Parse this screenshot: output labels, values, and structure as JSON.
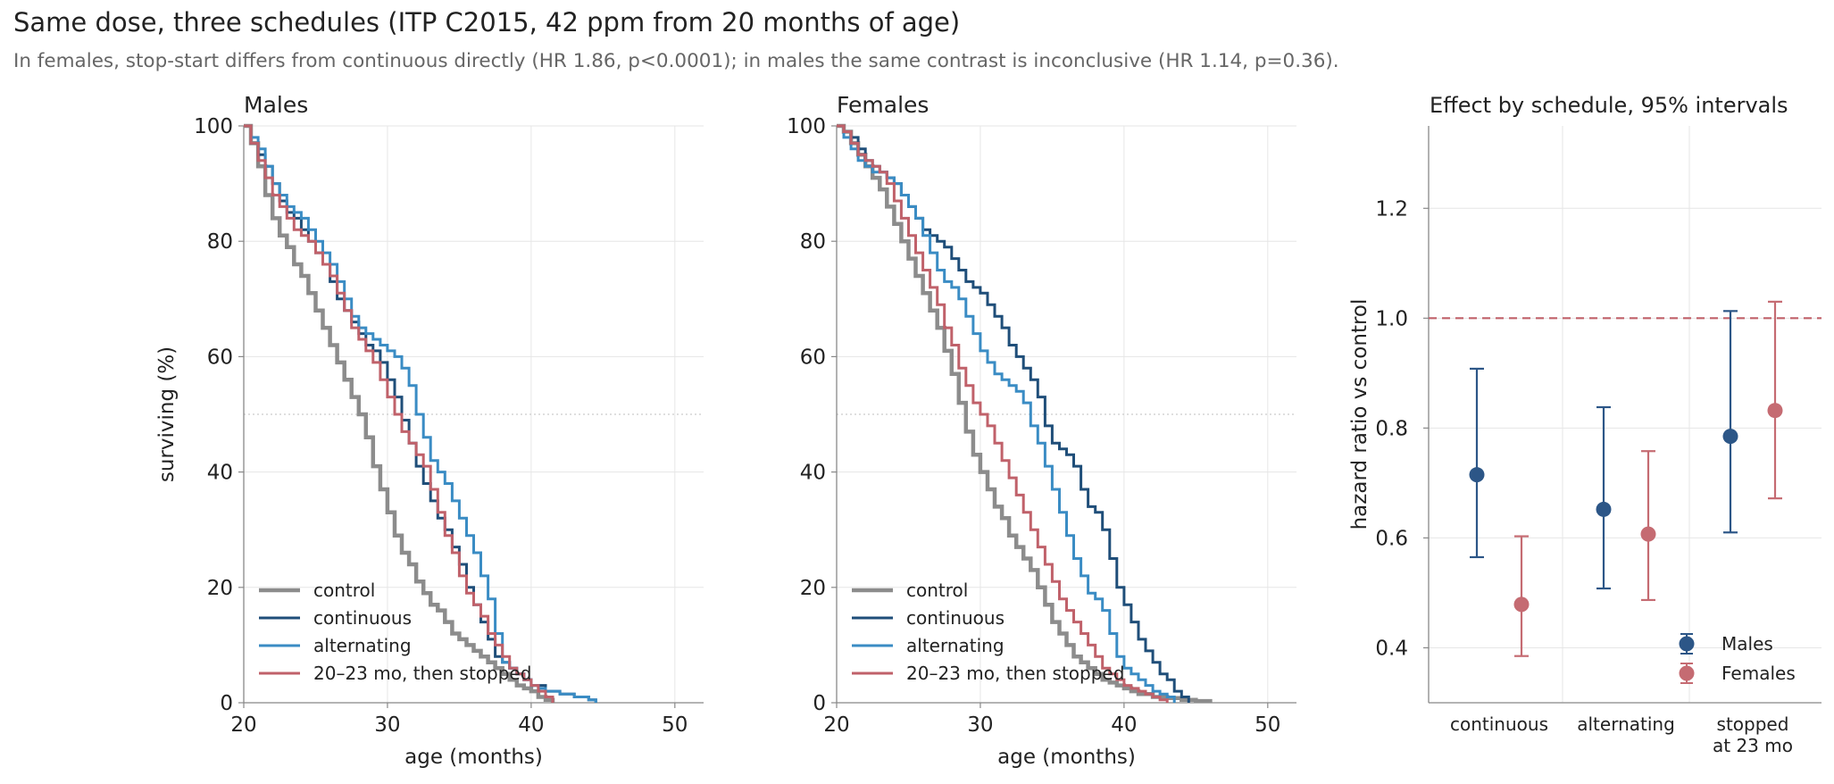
{
  "title": "Same dose, three schedules (ITP C2015, 42 ppm from 20 months of age)",
  "subtitle": "In females, stop-start differs from continuous directly (HR 1.86, p<0.0001); in males the same contrast is inconclusive (HR 1.14, p=0.36).",
  "colors": {
    "control": "#8c8c8c",
    "continuous": "#1f4e79",
    "alternating": "#3a8cc4",
    "stopped": "#c0616a",
    "males": "#2c5687",
    "females": "#c56b72",
    "reference_line": "#c0616a",
    "grid": "#e6e6e6"
  },
  "chart_data": [
    {
      "type": "line",
      "subtype": "step",
      "title": "Males",
      "xlabel": "age (months)",
      "ylabel": "surviving (%)",
      "xlim": [
        20,
        52
      ],
      "ylim": [
        0,
        100
      ],
      "xticks": [
        20,
        30,
        40,
        50
      ],
      "yticks": [
        0,
        20,
        40,
        60,
        80,
        100
      ],
      "grid": true,
      "reference_y": 50,
      "legend_position": "lower-left",
      "series": [
        {
          "name": "control",
          "key": "control",
          "x": [
            20,
            20.5,
            21,
            21.5,
            22,
            22.5,
            23,
            23.5,
            24,
            24.5,
            25,
            25.5,
            26,
            26.5,
            27,
            27.5,
            28,
            28.5,
            29,
            29.5,
            30,
            30.5,
            31,
            31.5,
            32,
            32.5,
            33,
            33.5,
            34,
            34.5,
            35,
            35.5,
            36,
            36.5,
            37,
            37.5,
            38,
            38.5,
            39,
            39.5,
            40,
            40.5,
            41,
            41.5
          ],
          "y": [
            100,
            97,
            93,
            88,
            84,
            81,
            79,
            76,
            74,
            71,
            68,
            65,
            62,
            59,
            56,
            53,
            50,
            46,
            41,
            37,
            33,
            29,
            26,
            24,
            21,
            19,
            17,
            16,
            14,
            12,
            11,
            10,
            9,
            8,
            7,
            6,
            5,
            4,
            3,
            2.5,
            2,
            1,
            0.5,
            0
          ]
        },
        {
          "name": "continuous",
          "key": "continuous",
          "x": [
            20,
            20.5,
            21,
            21.5,
            22,
            22.5,
            23,
            23.5,
            24,
            24.5,
            25,
            25.5,
            26,
            26.5,
            27,
            27.5,
            28,
            28.5,
            29,
            29.5,
            30,
            30.5,
            31,
            31.5,
            32,
            32.5,
            33,
            33.5,
            34,
            34.5,
            35,
            35.5,
            36,
            36.5,
            37,
            37.5,
            38,
            38.5,
            39,
            39.5,
            40,
            41,
            42,
            43,
            44,
            44.5
          ],
          "y": [
            100,
            97,
            95,
            93,
            90,
            87,
            85,
            84,
            82,
            80,
            78,
            76,
            73,
            70,
            68,
            66,
            64,
            62,
            61,
            59,
            56,
            53,
            49,
            45,
            41,
            38,
            35,
            32,
            30,
            27,
            24,
            20,
            17,
            14,
            11,
            8,
            7,
            6,
            5,
            4,
            3,
            2,
            1.5,
            1,
            0.5,
            0
          ]
        },
        {
          "name": "alternating",
          "key": "alternating",
          "x": [
            20,
            20.5,
            21,
            21.5,
            22,
            22.5,
            23,
            23.5,
            24,
            24.5,
            25,
            25.5,
            26,
            26.5,
            27,
            27.5,
            28,
            28.5,
            29,
            29.5,
            30,
            30.5,
            31,
            31.5,
            32,
            32.5,
            33,
            33.5,
            34,
            34.5,
            35,
            35.5,
            36,
            36.5,
            37,
            37.5,
            38,
            38.5,
            39,
            39.5,
            40,
            40.5,
            41,
            42,
            43,
            44,
            44.5
          ],
          "y": [
            100,
            98,
            96,
            93,
            90,
            88,
            86,
            85,
            84,
            82,
            80,
            78,
            76,
            73,
            70,
            67,
            65,
            64,
            63,
            62,
            61,
            60,
            58,
            55,
            50,
            46,
            42,
            40,
            38,
            35,
            32,
            29,
            26,
            22,
            18,
            12,
            7,
            6,
            5,
            4,
            3,
            2.5,
            2,
            1.5,
            1,
            0.5,
            0
          ]
        },
        {
          "name": "20–23 mo, then stopped",
          "key": "stopped",
          "x": [
            20,
            20.5,
            21,
            21.5,
            22,
            22.5,
            23,
            23.5,
            24,
            24.5,
            25,
            25.5,
            26,
            26.5,
            27,
            27.5,
            28,
            28.5,
            29,
            29.5,
            30,
            30.5,
            31,
            31.5,
            32,
            32.5,
            33,
            33.5,
            34,
            34.5,
            35,
            35.5,
            36,
            36.5,
            37,
            37.5,
            38,
            38.5,
            39,
            39.5,
            40,
            40.5,
            41,
            41.5
          ],
          "y": [
            100,
            97,
            94,
            91,
            88,
            86,
            84,
            82,
            81,
            80,
            78,
            76,
            74,
            71,
            68,
            65,
            63,
            61,
            59,
            56,
            53,
            50,
            47,
            45,
            43,
            41,
            37,
            33,
            29,
            26,
            22,
            19,
            17,
            15,
            12,
            10,
            8,
            6,
            5,
            4,
            3,
            2,
            1,
            0
          ]
        }
      ]
    },
    {
      "type": "line",
      "subtype": "step",
      "title": "Females",
      "xlabel": "age (months)",
      "ylabel": "",
      "xlim": [
        20,
        52
      ],
      "ylim": [
        0,
        100
      ],
      "xticks": [
        20,
        30,
        40,
        50
      ],
      "yticks": [
        0,
        20,
        40,
        60,
        80,
        100
      ],
      "grid": true,
      "reference_y": 50,
      "legend_position": "lower-left",
      "series": [
        {
          "name": "control",
          "key": "control",
          "x": [
            20,
            20.5,
            21,
            21.5,
            22,
            22.5,
            23,
            23.5,
            24,
            24.5,
            25,
            25.5,
            26,
            26.5,
            27,
            27.5,
            28,
            28.5,
            29,
            29.5,
            30,
            30.5,
            31,
            31.5,
            32,
            32.5,
            33,
            33.5,
            34,
            34.5,
            35,
            35.5,
            36,
            36.5,
            37,
            37.5,
            38,
            38.5,
            39,
            39.5,
            40,
            40.5,
            41,
            42,
            43,
            44,
            45,
            46
          ],
          "y": [
            100,
            99,
            97,
            95,
            93,
            91,
            89,
            86,
            83,
            80,
            77,
            74,
            71,
            68,
            65,
            61,
            57,
            52,
            47,
            43,
            40,
            37,
            34,
            32,
            29,
            27,
            25,
            23,
            20,
            17,
            14,
            12,
            10,
            8,
            7,
            6,
            5,
            4,
            3.5,
            3,
            2.5,
            2,
            1.5,
            1,
            0.8,
            0.5,
            0.3,
            0
          ]
        },
        {
          "name": "continuous",
          "key": "continuous",
          "x": [
            20,
            20.5,
            21,
            21.5,
            22,
            22.5,
            23,
            23.5,
            24,
            24.5,
            25,
            25.5,
            26,
            26.5,
            27,
            27.5,
            28,
            28.5,
            29,
            29.5,
            30,
            30.5,
            31,
            31.5,
            32,
            32.5,
            33,
            33.5,
            34,
            34.5,
            35,
            35.5,
            36,
            36.5,
            37,
            37.5,
            38,
            38.5,
            39,
            39.5,
            40,
            40.5,
            41,
            41.5,
            42,
            42.5,
            43,
            43.5,
            44,
            44.5
          ],
          "y": [
            100,
            99,
            98,
            96,
            94,
            93,
            92,
            91,
            90,
            88,
            86,
            84,
            82,
            81,
            80,
            79,
            77,
            75,
            73,
            72,
            71,
            69,
            67,
            65,
            62,
            60,
            58,
            56,
            53,
            48,
            45,
            44,
            43,
            41,
            37,
            34,
            33,
            30,
            25,
            20,
            17,
            14,
            11,
            9,
            7,
            5,
            4,
            2,
            1,
            0
          ]
        },
        {
          "name": "alternating",
          "key": "alternating",
          "x": [
            20,
            20.5,
            21,
            21.5,
            22,
            22.5,
            23,
            23.5,
            24,
            24.5,
            25,
            25.5,
            26,
            26.5,
            27,
            27.5,
            28,
            28.5,
            29,
            29.5,
            30,
            30.5,
            31,
            31.5,
            32,
            32.5,
            33,
            33.5,
            34,
            34.5,
            35,
            35.5,
            36,
            36.5,
            37,
            37.5,
            38,
            38.5,
            39,
            39.5,
            40,
            40.5,
            41,
            41.5,
            42,
            42.5,
            43,
            43.5
          ],
          "y": [
            100,
            98,
            96,
            94,
            93,
            92,
            92,
            91,
            90,
            88,
            86,
            84,
            81,
            78,
            75,
            73,
            72,
            70,
            67,
            64,
            61,
            59,
            57,
            56,
            55,
            54,
            52,
            48,
            45,
            41,
            37,
            33,
            29,
            25,
            22,
            19,
            18,
            16,
            12,
            8,
            6,
            5,
            4,
            3,
            2,
            1.5,
            1,
            0
          ]
        },
        {
          "name": "20–23 mo, then stopped",
          "key": "stopped",
          "x": [
            20,
            20.5,
            21,
            21.5,
            22,
            22.5,
            23,
            23.5,
            24,
            24.5,
            25,
            25.5,
            26,
            26.5,
            27,
            27.5,
            28,
            28.5,
            29,
            29.5,
            30,
            30.5,
            31,
            31.5,
            32,
            32.5,
            33,
            33.5,
            34,
            34.5,
            35,
            35.5,
            36,
            36.5,
            37,
            37.5,
            38,
            38.5,
            39,
            39.5,
            40,
            40.5,
            41,
            41.5,
            42,
            42.5,
            43
          ],
          "y": [
            100,
            99,
            97,
            95,
            94,
            93,
            92,
            90,
            87,
            84,
            81,
            78,
            75,
            72,
            69,
            65,
            62,
            58,
            55,
            52,
            50,
            48,
            45,
            42,
            39,
            36,
            33,
            30,
            27,
            24,
            21,
            18,
            16,
            14,
            12,
            10,
            8,
            6,
            5,
            4,
            3,
            2.5,
            2,
            1.5,
            1,
            0.5,
            0
          ]
        }
      ]
    },
    {
      "type": "scatter",
      "subtype": "errorbar",
      "title": "Effect by schedule, 95% intervals",
      "xlabel": "",
      "ylabel": "hazard ratio vs control",
      "categories": [
        "continuous",
        "alternating",
        "stopped at 23 mo"
      ],
      "category_lines": [
        [
          "continuous"
        ],
        [
          "alternating"
        ],
        [
          "stopped",
          "at 23 mo"
        ]
      ],
      "ylim": [
        0.3,
        1.35
      ],
      "yticks": [
        0.4,
        0.6,
        0.8,
        1.0,
        1.2
      ],
      "ytick_labels": [
        "0.4",
        "0.6",
        "0.8",
        "1.0",
        "1.2"
      ],
      "grid": true,
      "reference_y": 1.0,
      "legend_position": "lower-right",
      "series": [
        {
          "name": "Males",
          "key": "males",
          "estimates": [
            0.715,
            0.652,
            0.785
          ],
          "lower": [
            0.565,
            0.508,
            0.61
          ],
          "upper": [
            0.908,
            0.838,
            1.013
          ]
        },
        {
          "name": "Females",
          "key": "females",
          "estimates": [
            0.479,
            0.607,
            0.832
          ],
          "lower": [
            0.385,
            0.487,
            0.672
          ],
          "upper": [
            0.603,
            0.758,
            1.03
          ]
        }
      ]
    }
  ]
}
